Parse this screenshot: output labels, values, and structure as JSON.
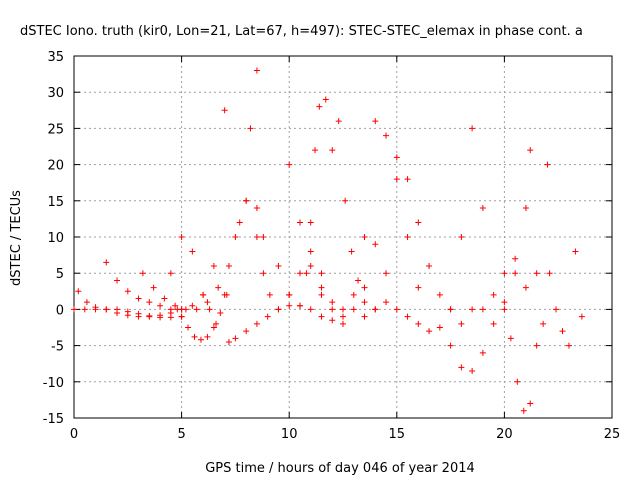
{
  "chart_data": {
    "type": "scatter",
    "title": "dSTEC Iono. truth (kir0, Lon=21, Lat=67, h=497): STEC-STEC_elemax in phase cont. a",
    "xlabel": "GPS time / hours of day 046 of year 2014",
    "ylabel": "dSTEC  / TECUs",
    "xlim": [
      0,
      25
    ],
    "ylim": [
      -15,
      35
    ],
    "xticks": [
      0,
      5,
      10,
      15,
      20,
      25
    ],
    "yticks": [
      -15,
      -10,
      -5,
      0,
      5,
      10,
      15,
      20,
      25,
      30,
      35
    ],
    "grid": true,
    "marker": "+",
    "color": "#ff0000",
    "series": [
      {
        "x": [
          0,
          0.5,
          1,
          1.5,
          2,
          2.5,
          3,
          3.5,
          4,
          4.5,
          5
        ],
        "y": [
          0,
          0,
          0,
          0,
          0,
          -0.3,
          -0.6,
          -0.9,
          -1.1,
          -1.1,
          -1.0
        ]
      },
      {
        "x": [
          0.2,
          0.6,
          1.0,
          1.5,
          2.0,
          2.5,
          3.0,
          3.5,
          4.0,
          4.5,
          5.0
        ],
        "y": [
          2.5,
          1.0,
          0.3,
          0,
          -0.5,
          -0.8,
          -1.0,
          -1.0,
          -0.8,
          -0.5,
          0
        ]
      },
      {
        "x": [
          1.5,
          2,
          2.5,
          3,
          3.5,
          4,
          4.5,
          5,
          5.5,
          6,
          6.5,
          7
        ],
        "y": [
          6.5,
          4,
          2.5,
          1.5,
          1,
          0.5,
          0,
          0,
          0.5,
          2,
          6,
          27.5
        ]
      },
      {
        "x": [
          3.2,
          3.7,
          4.2,
          4.7,
          5.2,
          5.7,
          6.2,
          6.7,
          7.2,
          7.7,
          8.2,
          8.5
        ],
        "y": [
          5,
          3,
          1.5,
          0.5,
          0,
          0,
          1,
          3,
          6,
          12,
          25,
          33
        ]
      },
      {
        "x": [
          4.5,
          5,
          5.5,
          6,
          6.3,
          6.6,
          7,
          7.5,
          8,
          8.5,
          8.8
        ],
        "y": [
          5,
          10,
          8,
          2,
          0,
          -2,
          2,
          10,
          15,
          14,
          10
        ]
      },
      {
        "x": [
          4.8,
          5.0,
          5.3,
          5.6,
          5.9,
          6.2,
          6.5,
          6.8,
          7.1
        ],
        "y": [
          0,
          -1,
          -2.5,
          -3.8,
          -4.2,
          -3.8,
          -2.5,
          -0.5,
          2
        ]
      },
      {
        "x": [
          7.2,
          7.5,
          8,
          8.5,
          9,
          9.5,
          10,
          10.5,
          11,
          11.5,
          12,
          12.5
        ],
        "y": [
          -4.5,
          -4,
          -3,
          -2,
          -1,
          0,
          0.5,
          0.5,
          0,
          -1,
          -1.5,
          -2
        ]
      },
      {
        "x": [
          8,
          8.5,
          8.8,
          9.1,
          9.5,
          10,
          10.5,
          11,
          11.5,
          12
        ],
        "y": [
          15,
          10,
          5,
          2,
          0,
          2,
          5,
          8,
          5,
          1
        ]
      },
      {
        "x": [
          9.5,
          10,
          10.5,
          10.8,
          11,
          11.2,
          11.4,
          11.7
        ],
        "y": [
          6,
          2,
          0.5,
          5,
          12,
          22,
          28,
          29
        ]
      },
      {
        "x": [
          10,
          10.5,
          11,
          11.5,
          12,
          12.5,
          13,
          13.5,
          14
        ],
        "y": [
          20,
          12,
          6,
          2,
          0,
          -1,
          0,
          3,
          9
        ]
      },
      {
        "x": [
          11.5,
          12,
          12.3,
          12.6,
          12.9,
          13.2,
          13.5,
          14,
          14.5
        ],
        "y": [
          3,
          22,
          26,
          15,
          8,
          4,
          1,
          0,
          1
        ]
      },
      {
        "x": [
          12.5,
          13,
          13.5,
          14,
          14.5,
          15,
          15.5,
          16
        ],
        "y": [
          0,
          2,
          10,
          26,
          24,
          18,
          10,
          3
        ]
      },
      {
        "x": [
          13.5,
          14,
          14.5,
          15,
          15.5,
          16,
          16.5,
          17,
          17.5,
          18
        ],
        "y": [
          -1,
          0,
          5,
          21,
          18,
          12,
          6,
          2,
          0,
          -2
        ]
      },
      {
        "x": [
          15,
          15.5,
          16,
          16.5,
          17,
          17.5,
          18,
          18.5,
          19
        ],
        "y": [
          0,
          -1,
          -2,
          -3,
          -2.5,
          0,
          10,
          25,
          14
        ]
      },
      {
        "x": [
          17.5,
          18,
          18.5,
          19,
          19.5,
          20,
          20.5,
          21,
          21.2
        ],
        "y": [
          -5,
          -8,
          -8.5,
          -6,
          -2,
          1,
          5,
          14,
          22
        ]
      },
      {
        "x": [
          18.5,
          19,
          19.5,
          20,
          20.5,
          21,
          21.5,
          22
        ],
        "y": [
          0,
          0,
          2,
          5,
          7,
          3,
          5,
          20
        ]
      },
      {
        "x": [
          20,
          20.3,
          20.6,
          20.9,
          21.2,
          21.5,
          21.8,
          22.1,
          22.4,
          22.7,
          23,
          23.3,
          23.6
        ],
        "y": [
          0,
          -4,
          -10,
          -14,
          -13,
          -5,
          -2,
          5,
          0,
          -3,
          -5,
          8,
          -1
        ]
      }
    ]
  }
}
